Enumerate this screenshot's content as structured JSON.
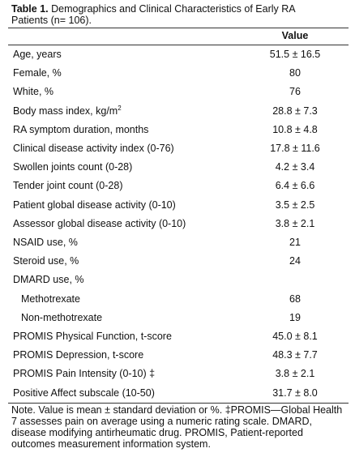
{
  "title": {
    "label": "Table 1.",
    "text": "Demographics and Clinical Characteristics of Early RA Patients (n= 106)."
  },
  "table": {
    "header": "Value",
    "rows": [
      {
        "label": "Age, years",
        "value": "51.5 ± 16.5"
      },
      {
        "label": "Female, %",
        "value": "80"
      },
      {
        "label": "White, %",
        "value": "76"
      },
      {
        "label": "Body mass index, kg/m",
        "label_sup": "2",
        "value": "28.8 ± 7.3"
      },
      {
        "label": "RA symptom duration, months",
        "value": "10.8 ± 4.8"
      },
      {
        "label": "Clinical disease activity index (0-76)",
        "value": "17.8 ± 11.6"
      },
      {
        "label": "Swollen joints count (0-28)",
        "value": "4.2 ± 3.4"
      },
      {
        "label": "Tender joint count (0-28)",
        "value": "6.4 ± 6.6"
      },
      {
        "label": "Patient global disease activity (0-10)",
        "value": "3.5 ± 2.5"
      },
      {
        "label": "Assessor global disease activity (0-10)",
        "value": "3.8 ± 2.1"
      },
      {
        "label": "NSAID use, %",
        "value": "21"
      },
      {
        "label": "Steroid use, %",
        "value": "24"
      },
      {
        "label": "DMARD use, %",
        "subrows": [
          {
            "label": "Methotrexate",
            "value": "68"
          },
          {
            "label": "Non-methotrexate",
            "value": "19"
          }
        ]
      },
      {
        "label": "PROMIS Physical Function, t-score",
        "value": "45.0 ± 8.1"
      },
      {
        "label": "PROMIS Depression, t-score",
        "value": "48.3 ± 7.7"
      },
      {
        "label": "PROMIS Pain Intensity (0-10) ‡",
        "value": "3.8 ± 2.1"
      },
      {
        "label": "Positive Affect subscale (10-50)",
        "value": "31.7 ± 8.0"
      }
    ]
  },
  "note": "Note. Value is mean ± standard deviation or %. ‡PROMIS—Global Health 7 assesses pain on average using a numeric rating scale. DMARD, disease modifying antirheumatic drug. PROMIS, Patient-reported outcomes measurement information system."
}
